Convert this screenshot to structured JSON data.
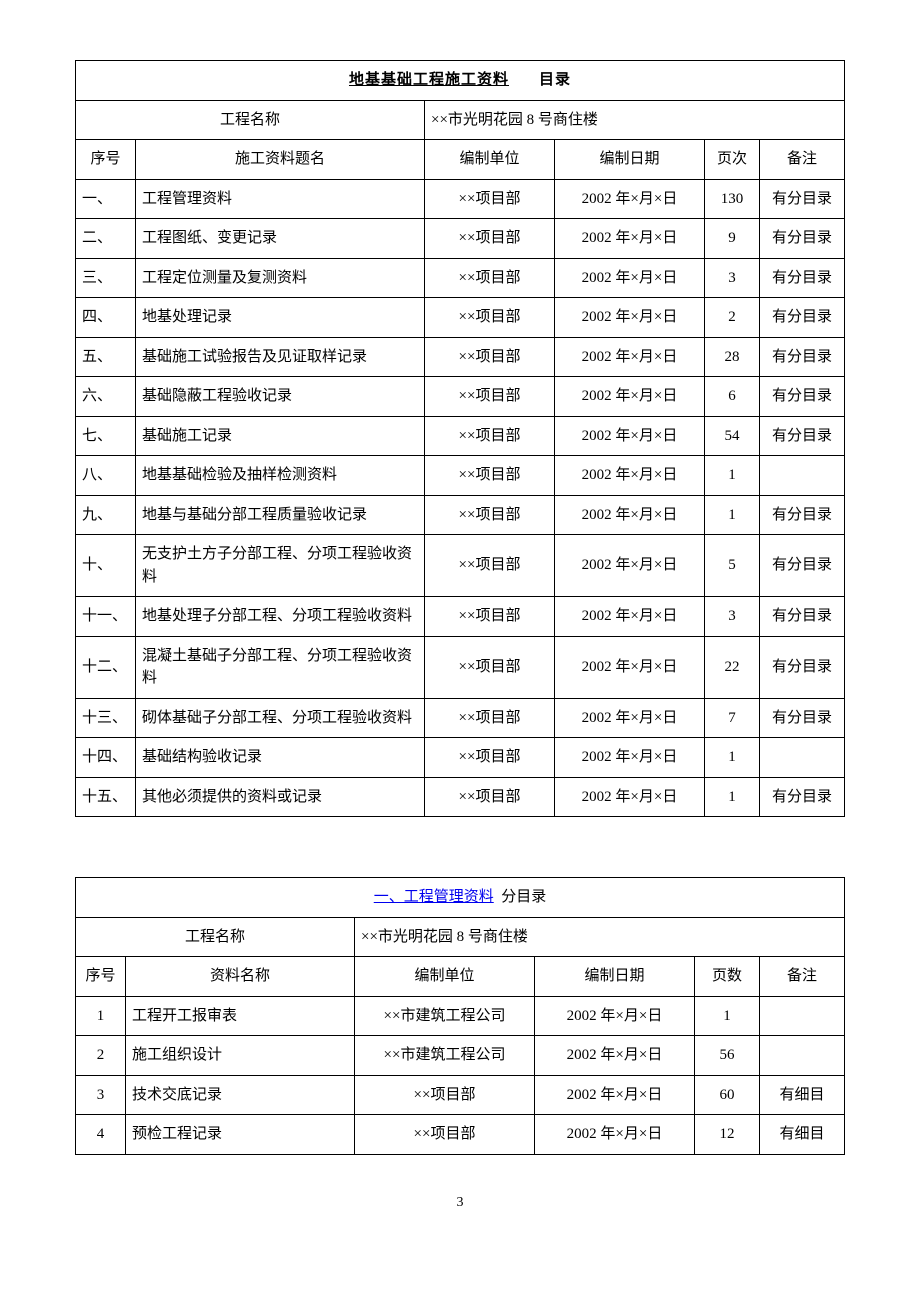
{
  "page_number": "3",
  "main_table": {
    "title_underlined": "地基基础工程施工资料",
    "title_right": "目录",
    "project_name_label": "工程名称",
    "project_name_value": "××市光明花园 8 号商住楼",
    "headers": {
      "seq": "序号",
      "name": "施工资料题名",
      "unit": "编制单位",
      "date": "编制日期",
      "pages": "页次",
      "remark": "备注"
    },
    "rows": [
      {
        "seq": "一、",
        "name": "工程管理资料",
        "unit": "××项目部",
        "date": "2002 年×月×日",
        "pages": "130",
        "remark": "有分目录",
        "tall": false
      },
      {
        "seq": "二、",
        "name": "工程图纸、变更记录",
        "unit": "××项目部",
        "date": "2002 年×月×日",
        "pages": "9",
        "remark": "有分目录",
        "tall": false
      },
      {
        "seq": "三、",
        "name": "工程定位测量及复测资料",
        "unit": "××项目部",
        "date": "2002 年×月×日",
        "pages": "3",
        "remark": "有分目录",
        "tall": false
      },
      {
        "seq": "四、",
        "name": "地基处理记录",
        "unit": "××项目部",
        "date": "2002 年×月×日",
        "pages": "2",
        "remark": "有分目录",
        "tall": false
      },
      {
        "seq": "五、",
        "name": "基础施工试验报告及见证取样记录",
        "unit": "××项目部",
        "date": "2002 年×月×日",
        "pages": "28",
        "remark": "有分目录",
        "tall": false
      },
      {
        "seq": "六、",
        "name": "基础隐蔽工程验收记录",
        "unit": "××项目部",
        "date": "2002 年×月×日",
        "pages": "6",
        "remark": "有分目录",
        "tall": false
      },
      {
        "seq": "七、",
        "name": "基础施工记录",
        "unit": "××项目部",
        "date": "2002 年×月×日",
        "pages": "54",
        "remark": "有分目录",
        "tall": false
      },
      {
        "seq": "八、",
        "name": "地基基础检验及抽样检测资料",
        "unit": "××项目部",
        "date": "2002 年×月×日",
        "pages": "1",
        "remark": "",
        "tall": false
      },
      {
        "seq": "九、",
        "name": "地基与基础分部工程质量验收记录",
        "unit": "××项目部",
        "date": "2002 年×月×日",
        "pages": "1",
        "remark": "有分目录",
        "tall": false
      },
      {
        "seq": "十、",
        "name": "无支护土方子分部工程、分项工程验收资料",
        "unit": "××项目部",
        "date": "2002 年×月×日",
        "pages": "5",
        "remark": "有分目录",
        "tall": true
      },
      {
        "seq": "十一、",
        "name": "地基处理子分部工程、分项工程验收资料",
        "unit": "××项目部",
        "date": "2002 年×月×日",
        "pages": "3",
        "remark": "有分目录",
        "tall": true
      },
      {
        "seq": "十二、",
        "name": "混凝土基础子分部工程、分项工程验收资料",
        "unit": "××项目部",
        "date": "2002 年×月×日",
        "pages": "22",
        "remark": "有分目录",
        "tall": true
      },
      {
        "seq": "十三、",
        "name": "砌体基础子分部工程、分项工程验收资料",
        "unit": "××项目部",
        "date": "2002 年×月×日",
        "pages": "7",
        "remark": "有分目录",
        "tall": true
      },
      {
        "seq": "十四、",
        "name": "基础结构验收记录",
        "unit": "××项目部",
        "date": "2002 年×月×日",
        "pages": "1",
        "remark": "",
        "tall": true
      },
      {
        "seq": "十五、",
        "name": "其他必须提供的资料或记录",
        "unit": "××项目部",
        "date": "2002 年×月×日",
        "pages": "1",
        "remark": "有分目录",
        "tall": true
      }
    ]
  },
  "sub_table": {
    "title_link": "一、工程管理资料",
    "title_suffix": "分目录",
    "project_name_label": "工程名称",
    "project_name_value": "××市光明花园 8 号商住楼",
    "headers": {
      "seq": "序号",
      "name": "资料名称",
      "unit": "编制单位",
      "date": "编制日期",
      "pages": "页数",
      "remark": "备注"
    },
    "rows": [
      {
        "seq": "1",
        "name": "工程开工报审表",
        "unit": "××市建筑工程公司",
        "date": "2002 年×月×日",
        "pages": "1",
        "remark": ""
      },
      {
        "seq": "2",
        "name": "施工组织设计",
        "unit": "××市建筑工程公司",
        "date": "2002 年×月×日",
        "pages": "56",
        "remark": ""
      },
      {
        "seq": "3",
        "name": "技术交底记录",
        "unit": "××项目部",
        "date": "2002 年×月×日",
        "pages": "60",
        "remark": "有细目"
      },
      {
        "seq": "4",
        "name": "预检工程记录",
        "unit": "××项目部",
        "date": "2002 年×月×日",
        "pages": "12",
        "remark": "有细目"
      }
    ]
  }
}
